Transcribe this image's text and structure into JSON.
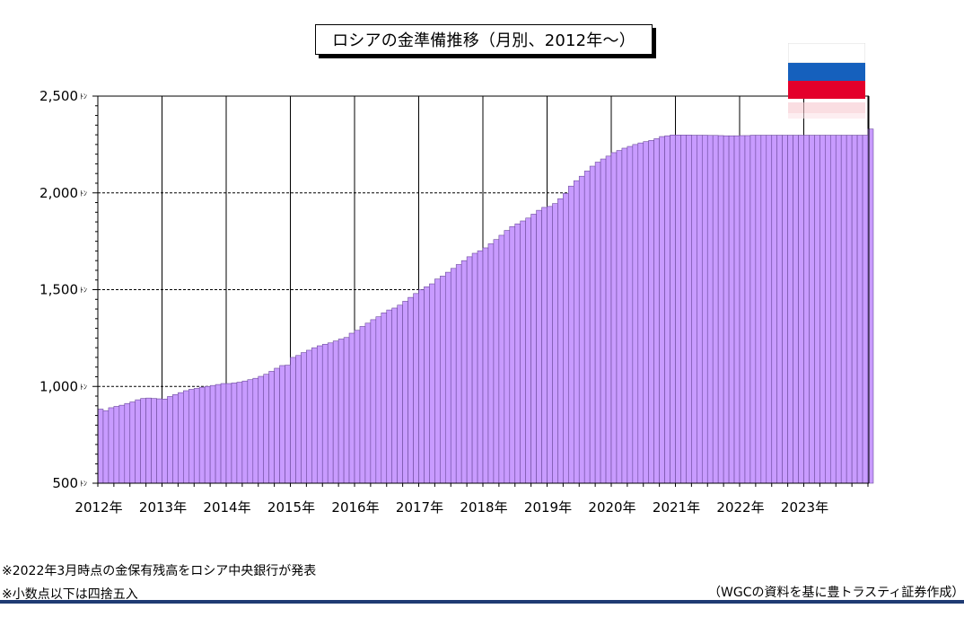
{
  "title": "ロシアの金準備推移（月別、2012年～）",
  "notes": {
    "note1": "※2022年3月時点の金保有残高をロシア中央銀行が発表",
    "note2": "※小数点以下は四捨五入",
    "source": "（WGCの資料を基に豊トラスティ証券作成）"
  },
  "colors": {
    "bar_fill": "#c89bff",
    "bar_stroke": "#6b4a9a",
    "rule": "#1f3b73",
    "flag_white": "#ffffff",
    "flag_blue": "#1560bd",
    "flag_red": "#e4002b"
  },
  "chart_data": {
    "type": "bar",
    "frequency": "monthly",
    "x_start": "2012-01",
    "ylim": [
      500,
      2500
    ],
    "yticks": [
      "500",
      "1,000",
      "1,500",
      "2,000",
      "2,500"
    ],
    "ytick_values": [
      500,
      1000,
      1500,
      2000,
      2500
    ],
    "y_unit": "ﾄﾝ",
    "xtick_labels": [
      "2012年",
      "2013年",
      "2014年",
      "2015年",
      "2016年",
      "2017年",
      "2018年",
      "2019年",
      "2020年",
      "2021年",
      "2022年",
      "2023年"
    ],
    "grid": "horizontal dashed, vertical solid at year boundaries",
    "series": [
      {
        "values": [
          883,
          875,
          890,
          897,
          903,
          912,
          920,
          931,
          938,
          940,
          938,
          936,
          935,
          948,
          958,
          968,
          978,
          985,
          990,
          996,
          1000,
          1005,
          1010,
          1015,
          1015,
          1018,
          1022,
          1028,
          1035,
          1042,
          1052,
          1063,
          1078,
          1094,
          1108,
          1110,
          1150,
          1160,
          1175,
          1187,
          1200,
          1210,
          1218,
          1225,
          1235,
          1245,
          1253,
          1275,
          1290,
          1310,
          1327,
          1345,
          1360,
          1380,
          1395,
          1405,
          1420,
          1440,
          1460,
          1480,
          1500,
          1515,
          1530,
          1555,
          1570,
          1590,
          1610,
          1630,
          1650,
          1670,
          1688,
          1701,
          1716,
          1737,
          1759,
          1781,
          1806,
          1826,
          1840,
          1855,
          1870,
          1890,
          1910,
          1925,
          1930,
          1945,
          1970,
          1997,
          2035,
          2063,
          2086,
          2113,
          2138,
          2159,
          2175,
          2190,
          2208,
          2219,
          2231,
          2240,
          2250,
          2258,
          2265,
          2271,
          2280,
          2291,
          2295,
          2299,
          2299,
          2299,
          2299,
          2298,
          2298,
          2298,
          2297,
          2297,
          2296,
          2295,
          2295,
          2295,
          2296,
          2296,
          2298,
          2298,
          2298,
          2298,
          2298,
          2298,
          2298,
          2298,
          2298,
          2298,
          2298,
          2298,
          2298,
          2298,
          2298,
          2298,
          2298,
          2298,
          2298,
          2298,
          2298,
          2298,
          2330
        ]
      }
    ]
  }
}
